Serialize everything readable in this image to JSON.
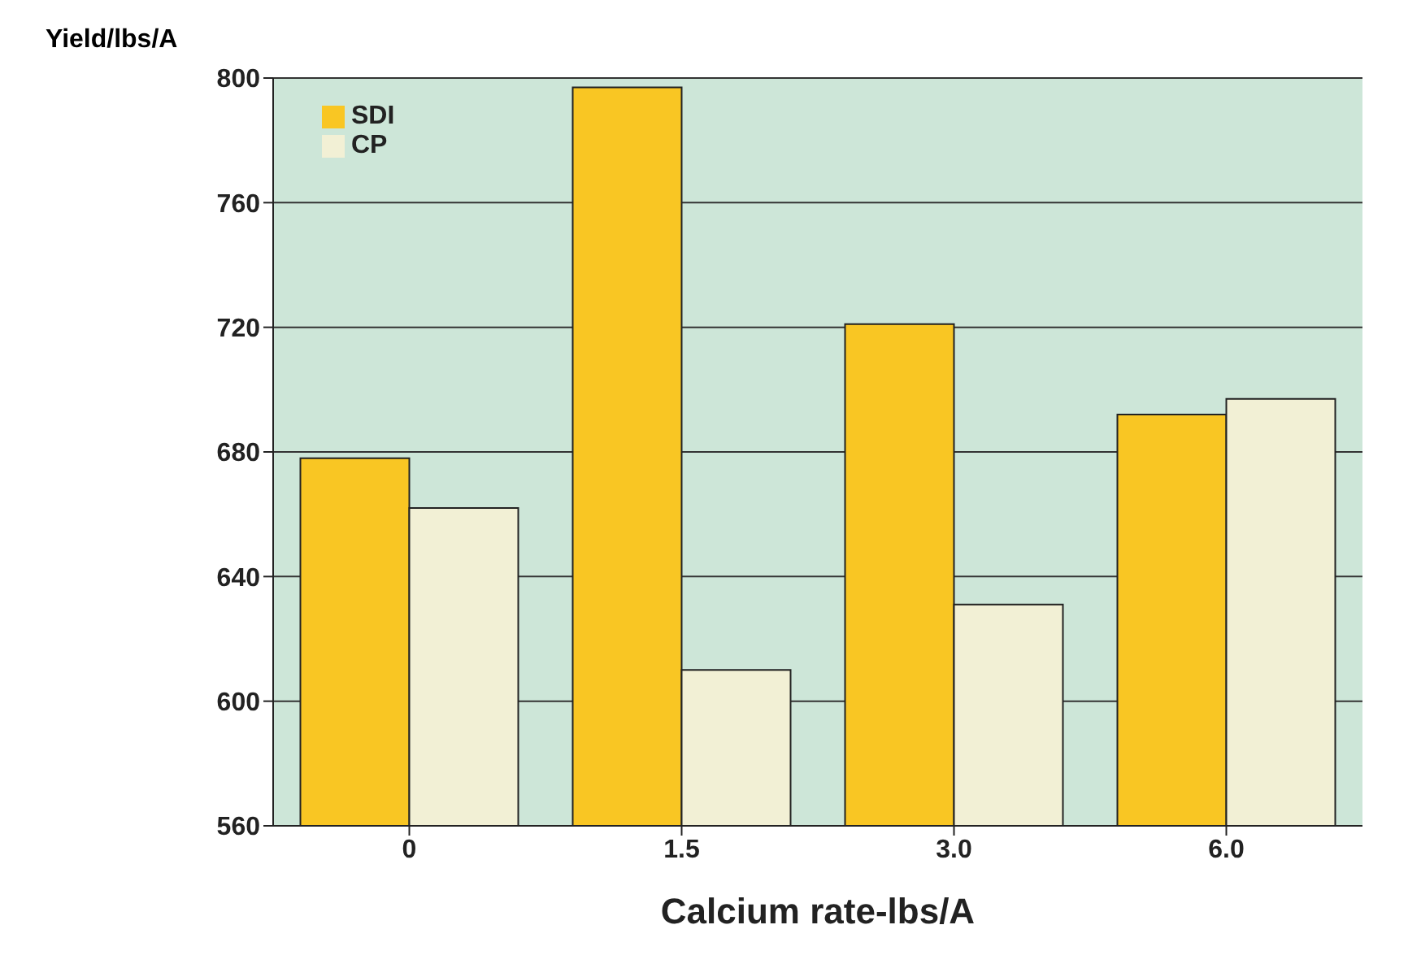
{
  "chart_data": {
    "type": "bar",
    "xlabel": "Calcium rate-lbs/A",
    "ylabel": "Yield/lbs/A",
    "categories": [
      "0",
      "1.5",
      "3.0",
      "6.0"
    ],
    "series": [
      {
        "name": "SDI",
        "color": "#f9c623",
        "values": [
          678,
          797,
          721,
          692
        ]
      },
      {
        "name": "CP",
        "color": "#f2f0d5",
        "values": [
          662,
          610,
          631,
          697
        ]
      }
    ],
    "ylim": [
      560,
      800
    ],
    "yticks": [
      560,
      600,
      640,
      680,
      720,
      760,
      800
    ],
    "grid": "y",
    "legend": "top left"
  }
}
